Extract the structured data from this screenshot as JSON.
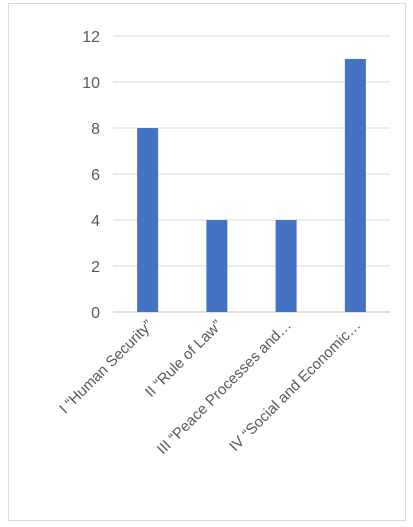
{
  "chart_data": {
    "type": "bar",
    "title": "",
    "xlabel": "",
    "ylabel": "",
    "categories": [
      "I “Human Security”",
      "II “Rule of Law”",
      "III “Peace Processes and…",
      "IV “Social and Economic…"
    ],
    "values": [
      8,
      4,
      4,
      11
    ],
    "ylim": [
      0,
      12
    ],
    "yticks": [
      "0",
      "2",
      "4",
      "6",
      "8",
      "10",
      "12"
    ],
    "grid": true,
    "legend": "none",
    "colors": {
      "bar": "#4472c4",
      "grid": "#d9d9d9",
      "axis": "#bfbfbf",
      "text": "#595959"
    }
  }
}
